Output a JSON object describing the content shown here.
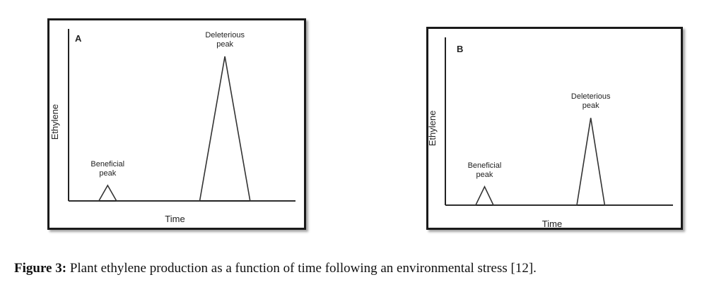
{
  "chart_data": [
    {
      "type": "line",
      "panel_label": "A",
      "xlabel": "Time",
      "ylabel": "Ethylene",
      "x": [
        0,
        1.2,
        1.55,
        1.9,
        5.2,
        6.2,
        7.2,
        9
      ],
      "y": [
        0,
        0,
        0.09,
        0,
        0,
        0.84,
        0,
        0
      ],
      "xlim": [
        0,
        9
      ],
      "ylim": [
        0,
        1
      ],
      "annotations": [
        {
          "text": [
            "Beneficial",
            "peak"
          ],
          "x": 1.55
        },
        {
          "text": [
            "Deleterious",
            "peak"
          ],
          "x": 6.2
        }
      ],
      "grid": false
    },
    {
      "type": "line",
      "panel_label": "B",
      "xlabel": "Time",
      "ylabel": "Ethylene",
      "x": [
        0,
        1.2,
        1.55,
        1.9,
        5.2,
        5.75,
        6.3,
        9
      ],
      "y": [
        0,
        0,
        0.11,
        0,
        0,
        0.52,
        0,
        0
      ],
      "xlim": [
        0,
        9
      ],
      "ylim": [
        0,
        1
      ],
      "annotations": [
        {
          "text": [
            "Beneficial",
            "peak"
          ],
          "x": 1.55
        },
        {
          "text": [
            "Deleterious",
            "peak"
          ],
          "x": 5.75
        }
      ],
      "grid": false
    }
  ],
  "caption": {
    "label": "Figure 3:",
    "text": " Plant ethylene production as a function of time following an environmental stress [12]."
  }
}
